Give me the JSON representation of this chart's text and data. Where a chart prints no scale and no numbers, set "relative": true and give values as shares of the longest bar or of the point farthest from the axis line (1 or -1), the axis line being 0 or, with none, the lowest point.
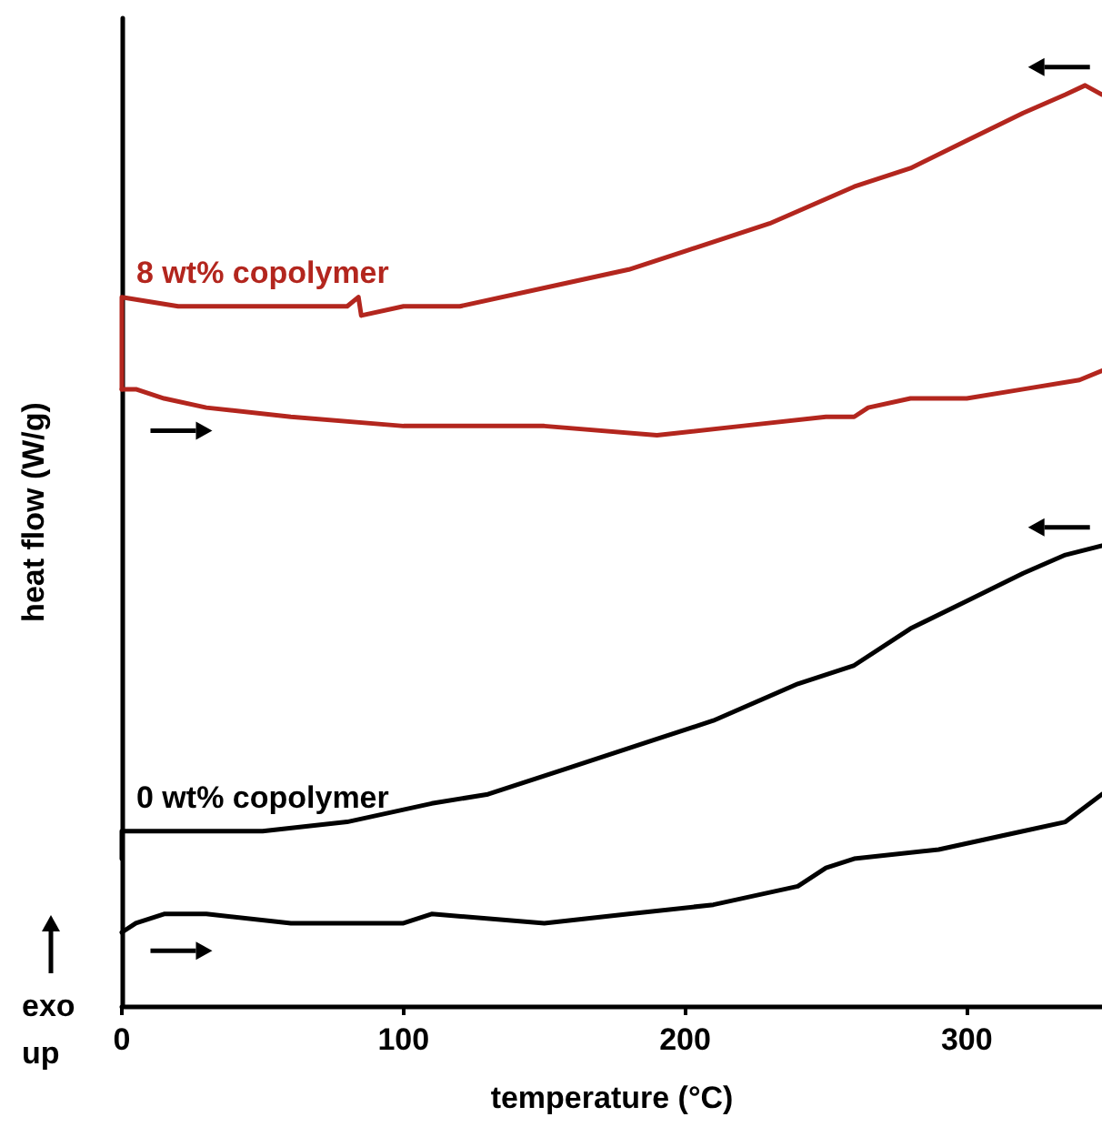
{
  "chart_data": {
    "type": "line",
    "relative": true,
    "xlabel": "temperature (°C)",
    "ylabel": "heat flow (W/g)",
    "xlim": [
      0,
      348
    ],
    "xticks": [
      0,
      100,
      200,
      300
    ],
    "tick_labels": "x",
    "grid": false,
    "legend": false,
    "marker": "none",
    "line_style": "solid",
    "annotations": [
      "exo\nup"
    ],
    "series": [
      {
        "name": "8 wt% copolymer",
        "color": "#b3261e",
        "x": [
          0,
          0,
          20,
          50,
          80,
          84,
          85,
          100,
          120,
          150,
          180,
          200,
          230,
          260,
          280,
          300,
          320,
          335,
          342,
          348
        ],
        "values": [
          0.67,
          0.77,
          0.76,
          0.76,
          0.76,
          0.77,
          0.75,
          0.76,
          0.76,
          0.78,
          0.8,
          0.82,
          0.85,
          0.89,
          0.91,
          0.94,
          0.97,
          0.99,
          1,
          0.99
        ]
      },
      {
        "color": "#b3261e",
        "x": [
          0,
          5,
          15,
          30,
          60,
          100,
          110,
          150,
          190,
          220,
          250,
          260,
          265,
          280,
          300,
          320,
          340,
          348
        ],
        "values": [
          0.67,
          0.67,
          0.66,
          0.65,
          0.64,
          0.63,
          0.63,
          0.63,
          0.62,
          0.63,
          0.64,
          0.64,
          0.65,
          0.66,
          0.66,
          0.67,
          0.68,
          0.69
        ]
      },
      {
        "name": "0 wt% copolymer",
        "color": "#000000",
        "x": [
          0,
          0,
          20,
          50,
          80,
          110,
          130,
          160,
          190,
          210,
          240,
          260,
          280,
          300,
          320,
          335,
          348
        ],
        "values": [
          0.16,
          0.19,
          0.19,
          0.19,
          0.2,
          0.22,
          0.23,
          0.26,
          0.29,
          0.31,
          0.35,
          0.37,
          0.41,
          0.44,
          0.47,
          0.49,
          0.5
        ]
      },
      {
        "color": "#000000",
        "x": [
          0,
          5,
          15,
          30,
          60,
          100,
          110,
          150,
          180,
          210,
          240,
          250,
          260,
          290,
          320,
          335,
          348
        ],
        "values": [
          0.08,
          0.09,
          0.1,
          0.1,
          0.09,
          0.09,
          0.1,
          0.09,
          0.1,
          0.11,
          0.13,
          0.15,
          0.16,
          0.17,
          0.19,
          0.2,
          0.23
        ]
      }
    ]
  }
}
